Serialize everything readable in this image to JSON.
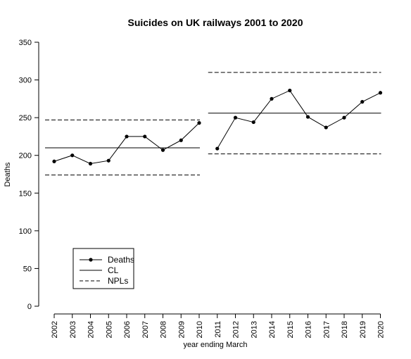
{
  "chart_data": {
    "type": "line",
    "title": "Suicides on UK railways 2001 to 2020",
    "xlabel": "year ending March",
    "ylabel": "Deaths",
    "ylim": [
      0,
      350
    ],
    "yticks": [
      0,
      50,
      100,
      150,
      200,
      250,
      300,
      350
    ],
    "categories": [
      "2002",
      "2003",
      "2004",
      "2005",
      "2006",
      "2007",
      "2008",
      "2009",
      "2010",
      "2011",
      "2012",
      "2013",
      "2014",
      "2015",
      "2016",
      "2017",
      "2018",
      "2019",
      "2020"
    ],
    "series": [
      {
        "name": "Deaths",
        "style": "line-with-points",
        "segments": [
          {
            "start": "2002",
            "end": "2010",
            "values": [
              192,
              200,
              189,
              193,
              225,
              225,
              207,
              220,
              243
            ]
          },
          {
            "start": "2011",
            "end": "2020",
            "values": [
              209,
              250,
              244,
              275,
              286,
              251,
              237,
              250,
              271,
              283
            ]
          }
        ]
      },
      {
        "name": "CL",
        "style": "solid",
        "segments": [
          {
            "start": "2002",
            "end": "2010",
            "value": 210
          },
          {
            "start": "2011",
            "end": "2020",
            "value": 256
          }
        ]
      },
      {
        "name": "NPLs",
        "style": "dashed",
        "segments": [
          {
            "start": "2002",
            "end": "2010",
            "lower": 174,
            "upper": 247
          },
          {
            "start": "2011",
            "end": "2020",
            "lower": 202,
            "upper": 310
          }
        ]
      }
    ],
    "legend": {
      "placement": "bottom-left",
      "entries": [
        "Deaths",
        "CL",
        "NPLs"
      ]
    },
    "grid": false,
    "colors": {
      "line": "#000000",
      "background": "#ffffff"
    }
  }
}
